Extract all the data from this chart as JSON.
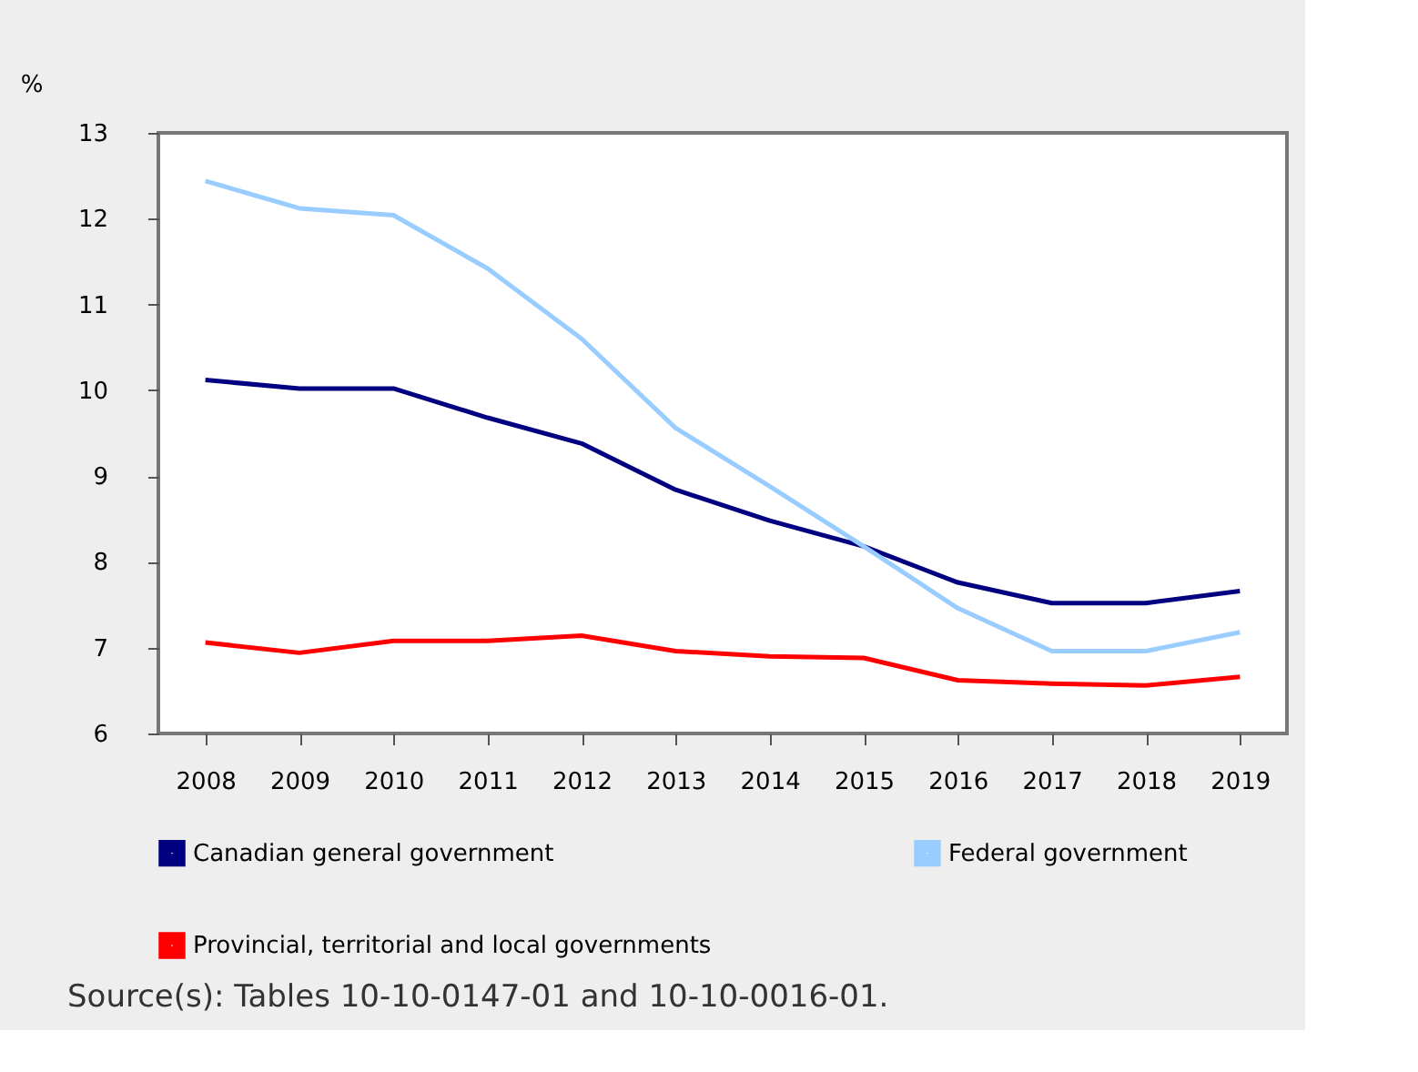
{
  "chart_data": {
    "type": "line",
    "ylabel": "%",
    "categories": [
      "2008",
      "2009",
      "2010",
      "2011",
      "2012",
      "2013",
      "2014",
      "2015",
      "2016",
      "2017",
      "2018",
      "2019"
    ],
    "series": [
      {
        "name": "Canadian general government",
        "color": "#000080",
        "values": [
          10.12,
          10.02,
          10.02,
          9.68,
          9.38,
          8.84,
          8.48,
          8.18,
          7.76,
          7.52,
          7.52,
          7.66
        ]
      },
      {
        "name": "Federal government",
        "color": "#99ccff",
        "values": [
          12.44,
          12.12,
          12.04,
          11.42,
          10.6,
          9.56,
          8.88,
          8.18,
          7.46,
          6.96,
          6.96,
          7.18
        ]
      },
      {
        "name": "Provincial, territorial and local governments",
        "color": "#ff0000",
        "values": [
          7.06,
          6.94,
          7.08,
          7.08,
          7.14,
          6.96,
          6.9,
          6.88,
          6.62,
          6.58,
          6.56,
          6.66
        ]
      }
    ],
    "ylim": [
      6,
      13
    ],
    "yticks": [
      6,
      7,
      8,
      9,
      10,
      11,
      12,
      13
    ],
    "grid": false,
    "legend": "bottom",
    "marker": "none",
    "line_style": "solid",
    "annotations": [
      "Source(s):  Tables 10-10-0147-01 and 10-10-0016-01."
    ]
  }
}
